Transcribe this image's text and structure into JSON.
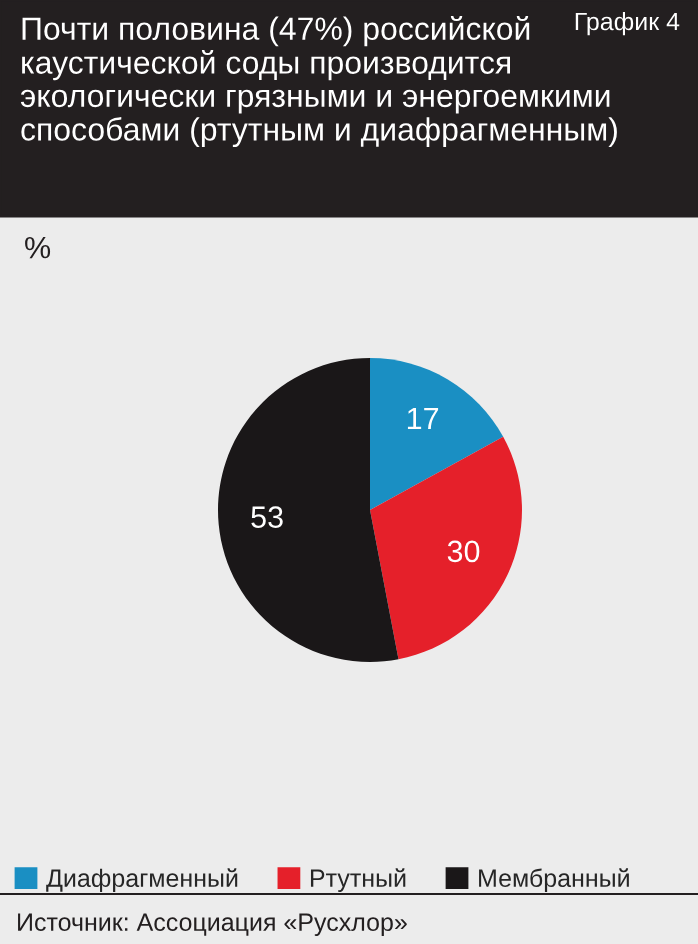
{
  "chart_data": {
    "type": "pie",
    "title": "Почти половина (47%) российской\nкаустической соды производится\nэкологически грязными и энергоемкими\nспособами (ртутным и диафрагменным)",
    "annotations": [
      "График 4",
      "%",
      "Источник: Ассоциация «Русхлор»"
    ],
    "categories": [
      "Диафрагменный",
      "Ртутный",
      "Мембранный"
    ],
    "values": [
      17,
      30,
      53
    ],
    "colors": [
      "#1a8fc3",
      "#e5202a",
      "#1a1718"
    ],
    "data_labels": true,
    "legend": "bottom"
  }
}
